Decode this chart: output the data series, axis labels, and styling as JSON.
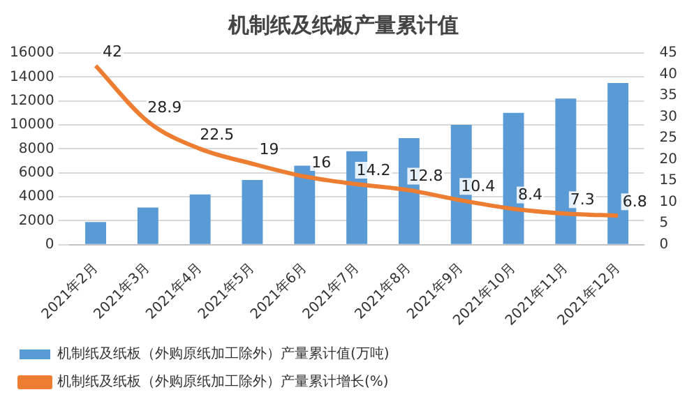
{
  "chart_data": {
    "type": "bar",
    "title": "机制纸及纸板产量累计值",
    "categories": [
      "2021年2月",
      "2021年3月",
      "2021年4月",
      "2021年5月",
      "2021年6月",
      "2021年7月",
      "2021年8月",
      "2021年9月",
      "2021年10月",
      "2021年11月",
      "2021年12月"
    ],
    "series": [
      {
        "name": "机制纸及纸板（外购原纸加工除外）产量累计值(万吨)",
        "color": "#5b9bd5",
        "values": [
          1900,
          3100,
          4200,
          5400,
          6600,
          7800,
          8900,
          10000,
          11000,
          12200,
          13500
        ]
      },
      {
        "name": "机制纸及纸板（外购原纸加工除外）产量累计增长(%)",
        "type": "line",
        "axis": "y2",
        "color": "#ed7d31",
        "values": [
          42,
          28.9,
          22.5,
          19,
          16,
          14.2,
          12.8,
          10.4,
          8.4,
          7.3,
          6.8
        ],
        "value_labels": [
          "42",
          "28.9",
          "22.5",
          "19",
          "16",
          "14.2",
          "12.8",
          "10.4",
          "8.4",
          "7.3",
          "6.8"
        ]
      }
    ],
    "ylim": [
      0,
      16000
    ],
    "yticks": [
      0,
      2000,
      4000,
      6000,
      8000,
      10000,
      12000,
      14000,
      16000
    ],
    "y2lim": [
      0,
      45
    ],
    "y2ticks": [
      0,
      5,
      10,
      15,
      20,
      25,
      30,
      35,
      40,
      45
    ],
    "grid": "y",
    "legend": "bottom",
    "marker": "none"
  }
}
